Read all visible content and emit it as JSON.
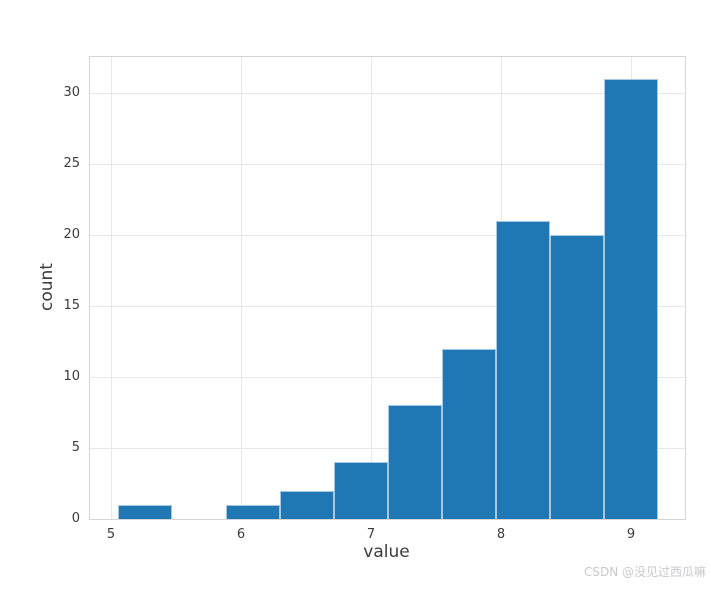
{
  "figure": {
    "xlabel": "value",
    "ylabel": "count",
    "watermark": "CSDN @没见过西瓜嘛"
  },
  "chart_data": {
    "type": "bar",
    "subtype": "histogram",
    "title": "",
    "xlabel": "value",
    "ylabel": "count",
    "bin_edges": [
      5.054,
      5.469,
      5.885,
      6.3,
      6.715,
      7.131,
      7.546,
      7.962,
      8.377,
      8.792,
      9.208
    ],
    "counts": [
      1,
      0,
      1,
      2,
      4,
      8,
      12,
      21,
      20,
      31
    ],
    "xticks": [
      5,
      6,
      7,
      8,
      9
    ],
    "yticks": [
      0,
      5,
      10,
      15,
      20,
      25,
      30
    ],
    "xlim": [
      4.838,
      9.415
    ],
    "ylim": [
      0,
      32.55
    ],
    "grid": true,
    "legend": false,
    "bar_color": "#1f77b4",
    "bar_edge_color": "#a6c8e2",
    "grid_color": "#e7e7e7",
    "spine_color": "#d5d5d5",
    "tick_label_color": "#3b3b3b",
    "watermark_color": "#c9c9cc"
  }
}
